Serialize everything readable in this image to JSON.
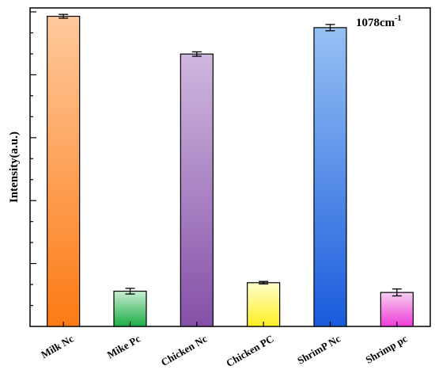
{
  "chart_data": {
    "type": "bar",
    "title": "",
    "xlabel": "",
    "ylabel": "Intensity(a.u.)",
    "annotation": "1078cm",
    "annotation_sup": "-1",
    "categories": [
      "Milk Nc",
      "Mike Pc",
      "Chicken Nc",
      "Chicken PC",
      "ShrimP Nc",
      "Shrimp pc"
    ],
    "values": [
      0.986,
      0.112,
      0.866,
      0.139,
      0.95,
      0.108
    ],
    "errors": [
      0.006,
      0.009,
      0.007,
      0.004,
      0.01,
      0.011
    ],
    "ylim": [
      0,
      1.0
    ],
    "y_ticks_labeled": false,
    "grid": false,
    "legend": "none",
    "colors": [
      [
        "#ffc99d",
        "#fc7a14"
      ],
      [
        "#c8ecd2",
        "#1aad45"
      ],
      [
        "#cfb8df",
        "#8550a8"
      ],
      [
        "#ffffcc",
        "#ffee22"
      ],
      [
        "#96c1f4",
        "#1a5bdc"
      ],
      [
        "#f6cff0",
        "#ef3bd8"
      ]
    ]
  }
}
